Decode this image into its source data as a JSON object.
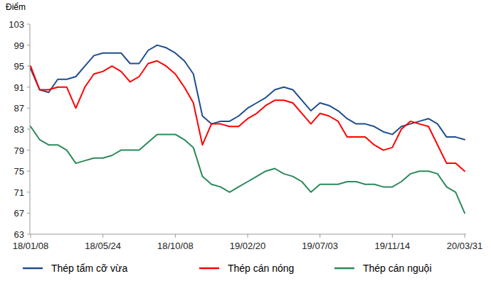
{
  "chart_data": {
    "type": "line",
    "y_label": "Điểm",
    "categories": [
      "18/01/08",
      null,
      null,
      null,
      null,
      null,
      null,
      null,
      "18/05/24",
      null,
      null,
      null,
      null,
      null,
      null,
      null,
      "18/10/08",
      null,
      null,
      null,
      null,
      null,
      null,
      null,
      "19/02/20",
      null,
      null,
      null,
      null,
      null,
      null,
      null,
      "19/07/03",
      null,
      null,
      null,
      null,
      null,
      null,
      null,
      "19/11/14",
      null,
      null,
      null,
      null,
      null,
      null,
      null,
      "20/03/31"
    ],
    "series": [
      {
        "name": "Thép tấm cỡ vừa",
        "color": "#1f4e8c",
        "values": [
          94.5,
          90.5,
          90,
          92.5,
          92.5,
          93,
          95,
          97,
          97.5,
          97.5,
          97.5,
          95.5,
          95.5,
          98,
          99,
          98.5,
          97.5,
          96,
          93.5,
          85.5,
          84,
          84.5,
          84.5,
          85.5,
          87,
          88,
          89,
          90.5,
          91,
          90.5,
          88.5,
          86.5,
          88,
          87.5,
          86.5,
          85,
          84,
          84,
          83.5,
          82.5,
          82,
          83.5,
          84,
          84.5,
          85,
          84,
          81.5,
          81.5,
          81
        ]
      },
      {
        "name": "Thép cán nóng",
        "color": "#ff0000",
        "values": [
          95,
          90.5,
          90.5,
          91,
          91,
          87,
          91,
          93.5,
          94,
          95,
          94,
          92,
          93,
          95.5,
          96,
          95,
          93.5,
          91,
          88,
          80,
          84,
          84,
          83.5,
          83.5,
          85,
          86,
          87.5,
          88.5,
          88.5,
          88,
          86,
          84,
          86,
          85.5,
          84.5,
          81.5,
          81.5,
          81.5,
          80,
          79,
          79.5,
          83,
          84.5,
          84,
          83.5,
          80,
          76.5,
          76.5,
          75
        ]
      },
      {
        "name": "Thép cán nguội",
        "color": "#2a8a5a",
        "values": [
          83.5,
          81,
          80,
          80,
          79,
          76.5,
          77,
          77.5,
          77.5,
          78,
          79,
          79,
          79,
          80.5,
          82,
          82,
          82,
          81,
          79.5,
          74,
          72.5,
          72,
          71,
          72,
          73,
          74,
          75,
          75.5,
          74.5,
          74,
          73,
          71,
          72.5,
          72.5,
          72.5,
          73,
          73,
          72.5,
          72.5,
          72,
          72,
          73,
          74.5,
          75,
          75,
          74.5,
          72,
          71,
          67
        ]
      }
    ],
    "ylim": [
      63,
      103
    ],
    "yticks": [
      63,
      67,
      71,
      75,
      79,
      83,
      87,
      91,
      95,
      99,
      103
    ],
    "grid": false,
    "legend": "bottom"
  }
}
